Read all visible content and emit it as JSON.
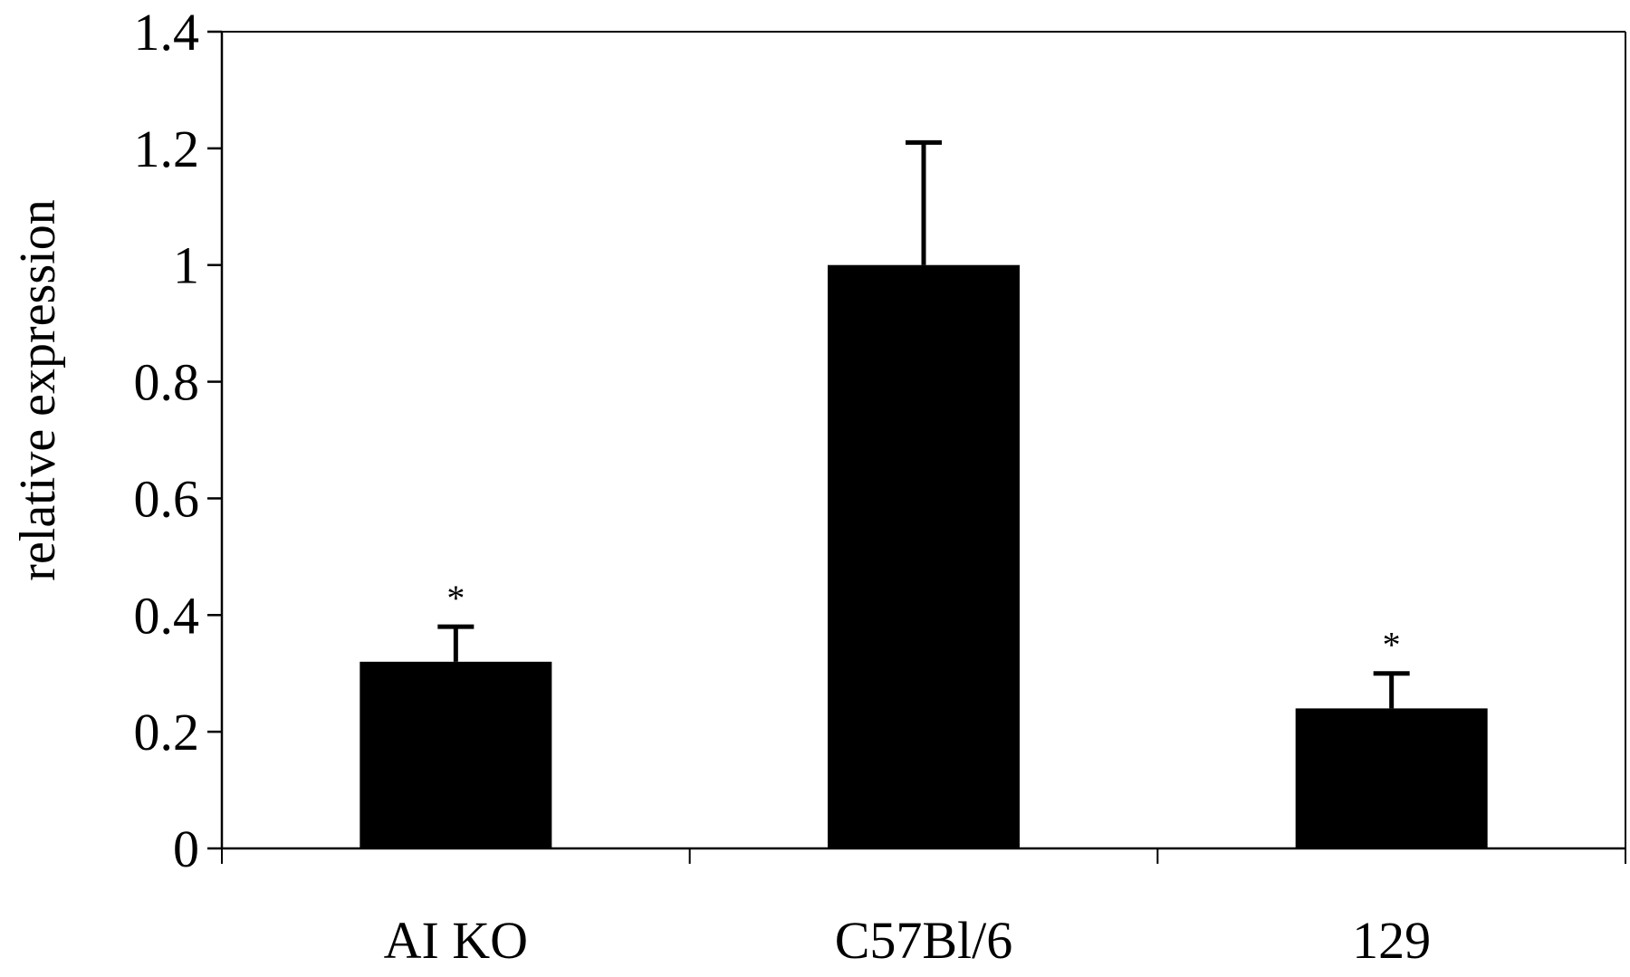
{
  "chart_data": {
    "type": "bar",
    "title": "",
    "xlabel": "",
    "ylabel": "relative expression",
    "categories": [
      "AI KO",
      "C57Bl/6",
      "129"
    ],
    "values": [
      0.32,
      1.0,
      0.24
    ],
    "error": [
      0.06,
      0.21,
      0.06
    ],
    "annotations": [
      "*",
      "",
      "*"
    ],
    "ylim": [
      0,
      1.4
    ],
    "yticks": [
      0,
      0.2,
      0.4,
      0.6,
      0.8,
      1,
      1.2,
      1.4
    ],
    "ytick_labels": [
      "0",
      "0.2",
      "0.4",
      "0.6",
      "0.8",
      "1",
      "1.2",
      "1.4"
    ],
    "grid": false,
    "legend": "none",
    "bar_color": "#000000",
    "axis_color": "#000000",
    "background": "#ffffff"
  }
}
